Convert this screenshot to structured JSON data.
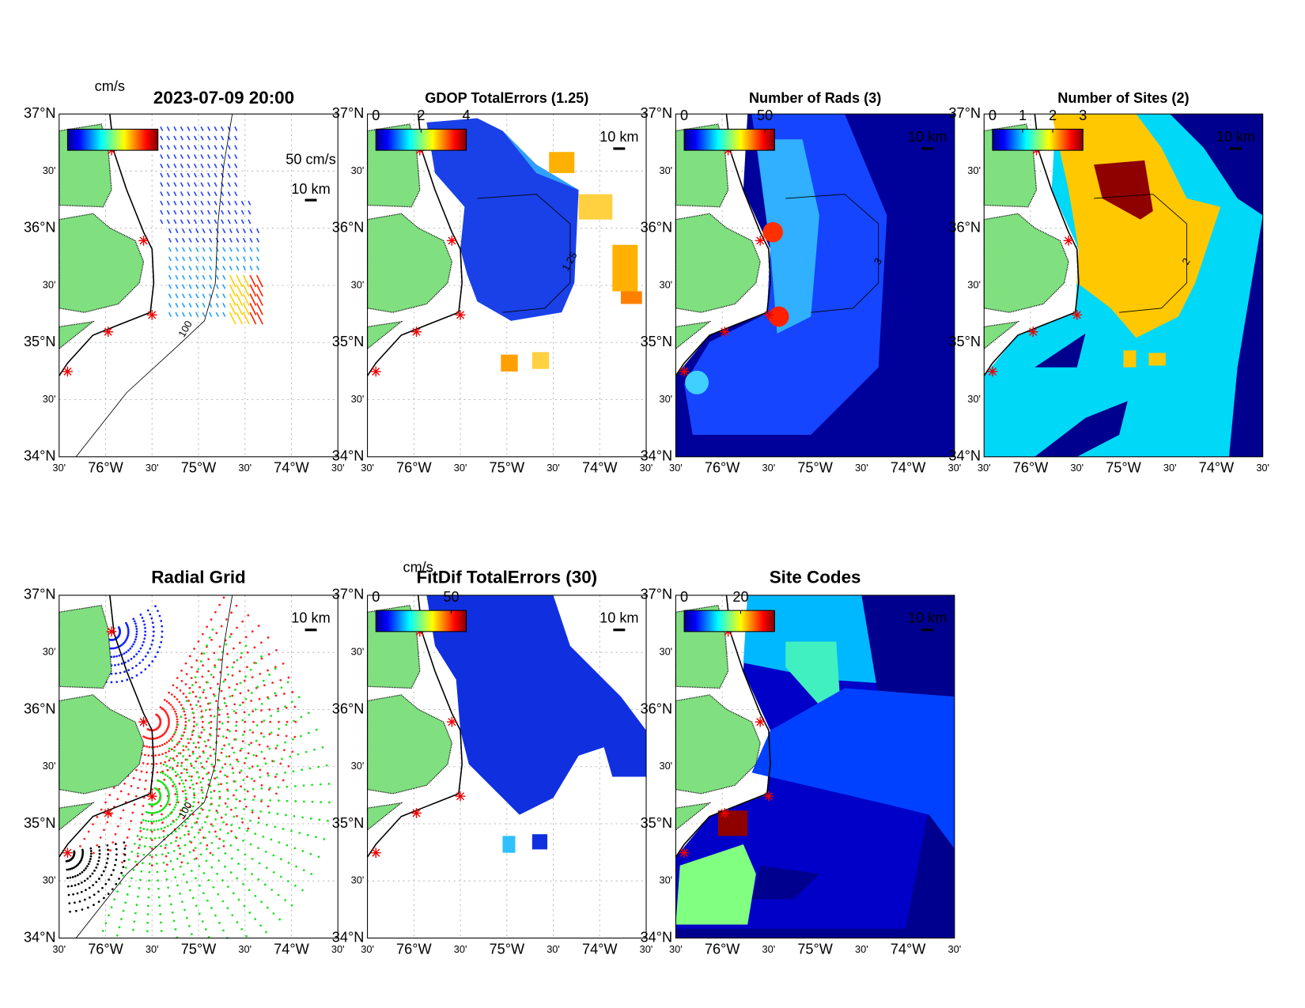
{
  "lat_labels": [
    "37°N",
    "30'",
    "36°N",
    "30'",
    "35°N",
    "30'",
    "34°N"
  ],
  "lon_labels": [
    "30'",
    "76°W",
    "30'",
    "75°W",
    "30'",
    "74°W",
    "30'"
  ],
  "panels": [
    {
      "title": "2023-07-09 20:00",
      "colorbar": {
        "label": "cm/s"
      },
      "scale_label": "10 km",
      "vector_scale_label": "50 cm/s",
      "contour_label": "100"
    },
    {
      "title": "GDOP TotalErrors (1.25)",
      "colorbar": {
        "clim": [
          0,
          4
        ],
        "ticks": [
          0,
          2,
          4
        ]
      },
      "scale_label": "10 km",
      "contour_label": "1.25"
    },
    {
      "title": "Number of Rads (3)",
      "colorbar": {
        "clim": [
          0,
          56
        ],
        "ticks": [
          0,
          50
        ]
      },
      "scale_label": "10 km",
      "contour_label": "3"
    },
    {
      "title": "Number of Sites (2)",
      "colorbar": {
        "clim": [
          0,
          3
        ],
        "ticks": [
          0,
          1,
          2,
          3
        ]
      },
      "scale_label": "10 km",
      "contour_label": "2"
    },
    {
      "title": "Radial Grid",
      "scale_label": "10 km",
      "contour_label": "100"
    },
    {
      "title": "FitDif TotalErrors (30)",
      "colorbar": {
        "label": "cm/s",
        "clim": [
          0,
          60
        ],
        "ticks": [
          0,
          50
        ]
      },
      "scale_label": "10 km"
    },
    {
      "title": "Site Codes",
      "colorbar": {
        "clim": [
          0,
          32
        ],
        "ticks": [
          0,
          20
        ]
      },
      "scale_label": "10 km"
    }
  ]
}
